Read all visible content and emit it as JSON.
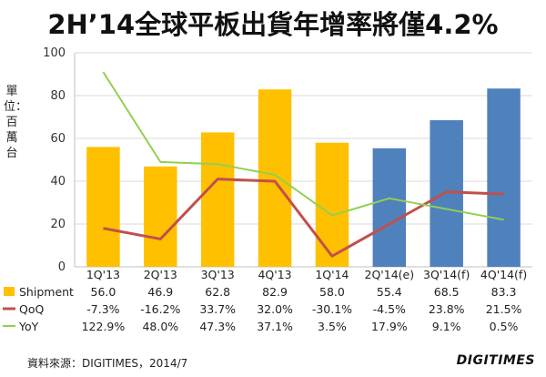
{
  "chart_data": {
    "type": "bar",
    "title": "2H’14全球平板出貨年增率將僅4.2%",
    "ylabel": "單位：百萬台",
    "ylim": [
      0,
      100
    ],
    "yticks": [
      0,
      20,
      40,
      60,
      80,
      100
    ],
    "grid": true,
    "categories": [
      "1Q'13",
      "2Q'13",
      "3Q'13",
      "4Q'13",
      "1Q'14",
      "2Q'14(e)",
      "3Q'14(f)",
      "4Q'14(f)"
    ],
    "series": [
      {
        "name": "Shipment",
        "kind": "bar",
        "values": [
          56.0,
          46.9,
          62.8,
          82.9,
          58.0,
          55.4,
          68.5,
          83.3
        ],
        "labels": [
          "56.0",
          "46.9",
          "62.8",
          "82.9",
          "58.0",
          "55.4",
          "68.5",
          "83.3"
        ],
        "colors": [
          "#FFC000",
          "#FFC000",
          "#FFC000",
          "#FFC000",
          "#FFC000",
          "#4F81BD",
          "#4F81BD",
          "#4F81BD"
        ]
      },
      {
        "name": "QoQ",
        "kind": "line",
        "color": "#C0504D",
        "plot_values": [
          18,
          13,
          41,
          40,
          5,
          20,
          35,
          34
        ],
        "labels": [
          "-7.3%",
          "-16.2%",
          "33.7%",
          "32.0%",
          "-30.1%",
          "-4.5%",
          "23.8%",
          "21.5%"
        ]
      },
      {
        "name": "YoY",
        "kind": "line",
        "color": "#92D050",
        "plot_values": [
          91,
          49,
          48,
          43,
          24,
          32,
          27,
          22
        ],
        "labels": [
          "122.9%",
          "48.0%",
          "47.3%",
          "37.1%",
          "3.5%",
          "17.9%",
          "9.1%",
          "0.5%"
        ]
      }
    ]
  },
  "footer": {
    "source": "資料來源：DIGITIMES，2014/7",
    "logo": "DIGITIMES"
  }
}
